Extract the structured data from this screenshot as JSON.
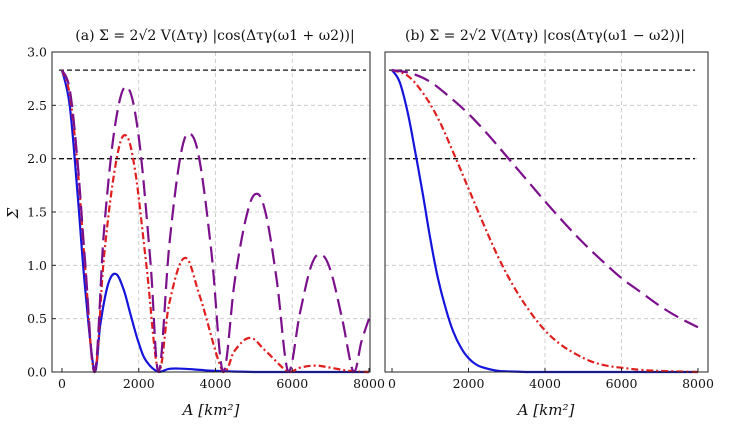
{
  "chart_data": [
    {
      "type": "line",
      "panel": "(a)",
      "title": "(a)  Σ = 2√2 V(Δτγ) |cos(Δτγ(ω1 + ω2))|",
      "xlabel": "A [km²]",
      "ylabel": "Σ",
      "xlim": [
        0,
        8000
      ],
      "ylim": [
        0,
        3.0
      ],
      "xticks": [
        "0",
        "2000",
        "4000",
        "6000",
        "8000"
      ],
      "yticks": [
        "0.0",
        "0.5",
        "1.0",
        "1.5",
        "2.0",
        "2.5",
        "3.0"
      ],
      "grid": true,
      "reference_lines": [
        {
          "name": "quantum-bound",
          "y": 2.83
        },
        {
          "name": "classical-bound",
          "y": 2.0
        }
      ],
      "series": [
        {
          "name": "solid",
          "color": "#1414dc",
          "style": "solid",
          "x": [
            0,
            200,
            400,
            600,
            850,
            1000,
            1200,
            1400,
            1600,
            1800,
            2000,
            2200,
            2520,
            2800,
            3200,
            3600,
            4000,
            5000,
            6000,
            8000
          ],
          "y": [
            2.83,
            2.5,
            1.7,
            0.8,
            0.0,
            0.45,
            0.82,
            0.92,
            0.78,
            0.52,
            0.27,
            0.1,
            0.0,
            0.03,
            0.03,
            0.02,
            0.01,
            0.0,
            0.0,
            0.0
          ]
        },
        {
          "name": "dash-dot",
          "color": "#e01e1e",
          "style": "dashdot",
          "x": [
            0,
            200,
            400,
            600,
            850,
            1100,
            1400,
            1650,
            1900,
            2200,
            2520,
            2800,
            3200,
            3600,
            4200,
            4500,
            4900,
            5300,
            5900,
            6200,
            6600,
            7000,
            7500,
            8000
          ],
          "y": [
            2.83,
            2.6,
            1.95,
            1.0,
            0.0,
            1.1,
            1.95,
            2.22,
            1.9,
            1.0,
            0.0,
            0.65,
            1.07,
            0.7,
            0.0,
            0.2,
            0.32,
            0.2,
            0.0,
            0.04,
            0.06,
            0.04,
            0.01,
            0.0
          ]
        },
        {
          "name": "long-dash",
          "color": "#7b0f8c",
          "style": "longdash",
          "x": [
            0,
            200,
            400,
            600,
            850,
            1100,
            1400,
            1700,
            2000,
            2300,
            2520,
            2800,
            3100,
            3350,
            3600,
            3900,
            4200,
            4500,
            4800,
            5050,
            5300,
            5600,
            5900,
            6200,
            6500,
            6750,
            7000,
            7300,
            7600,
            7800,
            8000
          ],
          "y": [
            2.83,
            2.65,
            2.0,
            1.05,
            0.0,
            1.35,
            2.35,
            2.67,
            2.2,
            1.05,
            0.0,
            1.2,
            2.05,
            2.23,
            1.95,
            1.1,
            0.0,
            0.85,
            1.45,
            1.67,
            1.5,
            0.85,
            0.0,
            0.55,
            1.0,
            1.1,
            0.95,
            0.5,
            0.0,
            0.28,
            0.5
          ]
        }
      ]
    },
    {
      "type": "line",
      "panel": "(b)",
      "title": "(b)  Σ = 2√2 V(Δτγ) |cos(Δτγ(ω1 − ω2))|",
      "xlabel": "A [km²]",
      "ylabel": "",
      "xlim": [
        0,
        8000
      ],
      "ylim": [
        0,
        3.0
      ],
      "xticks": [
        "0",
        "2000",
        "4000",
        "6000",
        "8000"
      ],
      "yticks": [],
      "grid": true,
      "reference_lines": [
        {
          "name": "quantum-bound",
          "y": 2.83
        },
        {
          "name": "classical-bound",
          "y": 2.0
        }
      ],
      "series": [
        {
          "name": "solid",
          "color": "#1414dc",
          "style": "solid",
          "x": [
            0,
            200,
            400,
            600,
            800,
            1000,
            1200,
            1400,
            1600,
            1800,
            2000,
            2200,
            2400,
            2700,
            3000,
            3500,
            4000,
            5000,
            6000,
            8000
          ],
          "y": [
            2.83,
            2.72,
            2.45,
            2.08,
            1.68,
            1.25,
            0.88,
            0.6,
            0.38,
            0.23,
            0.13,
            0.07,
            0.04,
            0.015,
            0.006,
            0.0,
            0.0,
            0.0,
            0.0,
            0.0
          ]
        },
        {
          "name": "dash-dot",
          "color": "#e01e1e",
          "style": "dashdot",
          "x": [
            0,
            400,
            800,
            1200,
            1600,
            2000,
            2400,
            2800,
            3200,
            3600,
            4000,
            4400,
            4800,
            5200,
            5600,
            6000,
            6500,
            7000,
            8000
          ],
          "y": [
            2.83,
            2.78,
            2.62,
            2.38,
            2.06,
            1.72,
            1.38,
            1.06,
            0.79,
            0.57,
            0.39,
            0.26,
            0.17,
            0.1,
            0.06,
            0.04,
            0.02,
            0.01,
            0.0
          ]
        },
        {
          "name": "long-dash",
          "color": "#7b0f8c",
          "style": "longdash",
          "x": [
            0,
            500,
            1000,
            1500,
            2000,
            2500,
            3000,
            3500,
            4000,
            4500,
            5000,
            5500,
            6000,
            6500,
            7000,
            7500,
            8000
          ],
          "y": [
            2.83,
            2.8,
            2.72,
            2.58,
            2.42,
            2.23,
            2.02,
            1.81,
            1.6,
            1.4,
            1.21,
            1.04,
            0.88,
            0.75,
            0.62,
            0.51,
            0.42
          ]
        }
      ]
    }
  ]
}
